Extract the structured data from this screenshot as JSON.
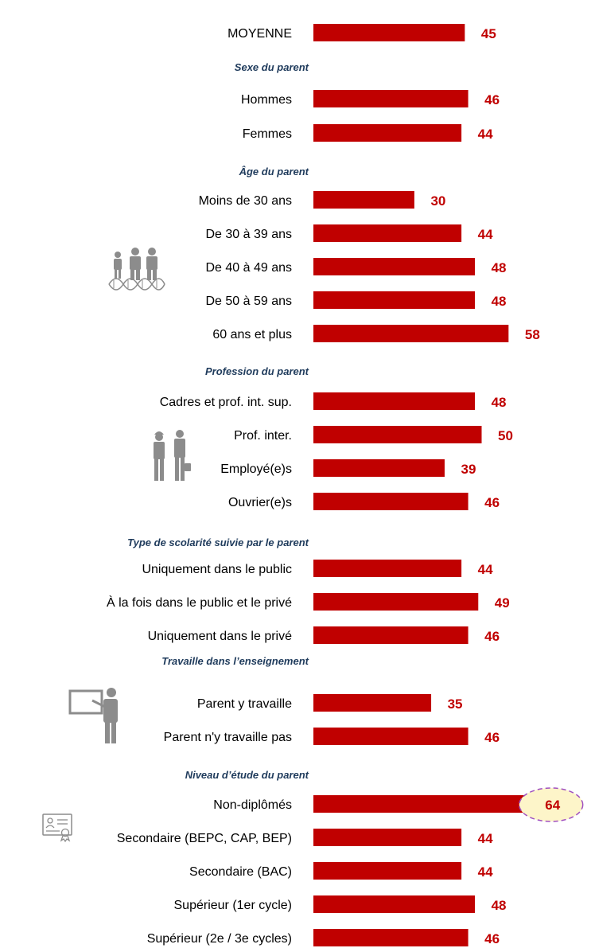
{
  "colors": {
    "bar": "#c00000",
    "value_text": "#c00000",
    "section_text": "#1f3b5c",
    "icon": "#8c8c8c",
    "highlight_fill": "#fdf5c9",
    "highlight_stroke": "#a050c0"
  },
  "icons": {
    "age": "family-dna-icon",
    "profession": "workers-icon",
    "teaching": "teacher-board-icon",
    "education": "diploma-certificate-icon"
  },
  "chart_data": {
    "type": "bar",
    "orientation": "horizontal",
    "xlim": [
      0,
      64
    ],
    "grid": false,
    "legend": "none",
    "rows": [
      {
        "kind": "category",
        "label": "MOYENNE",
        "value": 45
      },
      {
        "kind": "section",
        "label": "Sexe du parent"
      },
      {
        "kind": "category",
        "label": "Hommes",
        "value": 46
      },
      {
        "kind": "category",
        "label": "Femmes",
        "value": 44
      },
      {
        "kind": "section",
        "label": "Âge du parent"
      },
      {
        "kind": "category",
        "label": "Moins de 30 ans",
        "value": 30
      },
      {
        "kind": "category",
        "label": "De 30 à 39 ans",
        "value": 44
      },
      {
        "kind": "category",
        "label": "De 40 à 49 ans",
        "value": 48
      },
      {
        "kind": "category",
        "label": "De 50 à 59 ans",
        "value": 48
      },
      {
        "kind": "category",
        "label": "60 ans et plus",
        "value": 58
      },
      {
        "kind": "section",
        "label": "Profession du parent"
      },
      {
        "kind": "category",
        "label": "Cadres et prof. int. sup.",
        "value": 48
      },
      {
        "kind": "category",
        "label": "Prof. inter.",
        "value": 50
      },
      {
        "kind": "category",
        "label": "Employé(e)s",
        "value": 39
      },
      {
        "kind": "category",
        "label": "Ouvrier(e)s",
        "value": 46
      },
      {
        "kind": "section",
        "label": "Type de scolarité suivie par le parent"
      },
      {
        "kind": "category",
        "label": "Uniquement dans le public",
        "value": 44
      },
      {
        "kind": "category",
        "label": "À la fois dans le public et le privé",
        "value": 49
      },
      {
        "kind": "category",
        "label": "Uniquement dans le privé",
        "value": 46
      },
      {
        "kind": "section",
        "label": "Travaille dans l’enseignement"
      },
      {
        "kind": "category",
        "label": "Parent y travaille",
        "value": 35
      },
      {
        "kind": "category",
        "label": "Parent n'y travaille pas",
        "value": 46
      },
      {
        "kind": "section",
        "label": "Niveau d’étude du parent"
      },
      {
        "kind": "category",
        "label": "Non-diplômés",
        "value": 64,
        "highlight": true
      },
      {
        "kind": "category",
        "label": "Secondaire (BEPC, CAP, BEP)",
        "value": 44
      },
      {
        "kind": "category",
        "label": "Secondaire (BAC)",
        "value": 44
      },
      {
        "kind": "category",
        "label": "Supérieur (1er cycle)",
        "value": 48
      },
      {
        "kind": "category",
        "label": "Supérieur (2e / 3e cycles)",
        "value": 46
      }
    ]
  }
}
